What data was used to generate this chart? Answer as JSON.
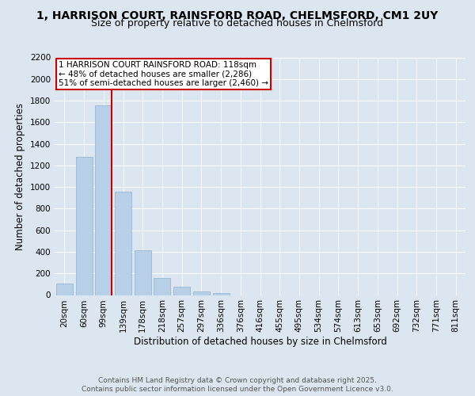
{
  "title_line1": "1, HARRISON COURT, RAINSFORD ROAD, CHELMSFORD, CM1 2UY",
  "title_line2": "Size of property relative to detached houses in Chelmsford",
  "xlabel": "Distribution of detached houses by size in Chelmsford",
  "ylabel": "Number of detached properties",
  "bar_labels": [
    "20sqm",
    "60sqm",
    "99sqm",
    "139sqm",
    "178sqm",
    "218sqm",
    "257sqm",
    "297sqm",
    "336sqm",
    "376sqm",
    "416sqm",
    "455sqm",
    "495sqm",
    "534sqm",
    "574sqm",
    "613sqm",
    "653sqm",
    "692sqm",
    "732sqm",
    "771sqm",
    "811sqm"
  ],
  "bar_values": [
    110,
    1280,
    1760,
    960,
    415,
    155,
    75,
    30,
    15,
    0,
    0,
    0,
    0,
    0,
    0,
    0,
    0,
    0,
    0,
    0,
    0
  ],
  "bar_color": "#b8cfe8",
  "bar_edge_color": "#90b0d0",
  "vline_color": "#cc0000",
  "annotation_text": "1 HARRISON COURT RAINSFORD ROAD: 118sqm\n← 48% of detached houses are smaller (2,286)\n51% of semi-detached houses are larger (2,460) →",
  "annotation_box_color": "#ffffff",
  "annotation_box_edge_color": "#cc0000",
  "ylim": [
    0,
    2200
  ],
  "yticks": [
    0,
    200,
    400,
    600,
    800,
    1000,
    1200,
    1400,
    1600,
    1800,
    2000,
    2200
  ],
  "background_color": "#dce6f0",
  "plot_bg_color": "#dce6f0",
  "footer_line1": "Contains HM Land Registry data © Crown copyright and database right 2025.",
  "footer_line2": "Contains public sector information licensed under the Open Government Licence v3.0.",
  "title_fontsize": 10,
  "subtitle_fontsize": 9,
  "axis_label_fontsize": 8.5,
  "tick_fontsize": 7.5,
  "annotation_fontsize": 7.5,
  "footer_fontsize": 6.5
}
